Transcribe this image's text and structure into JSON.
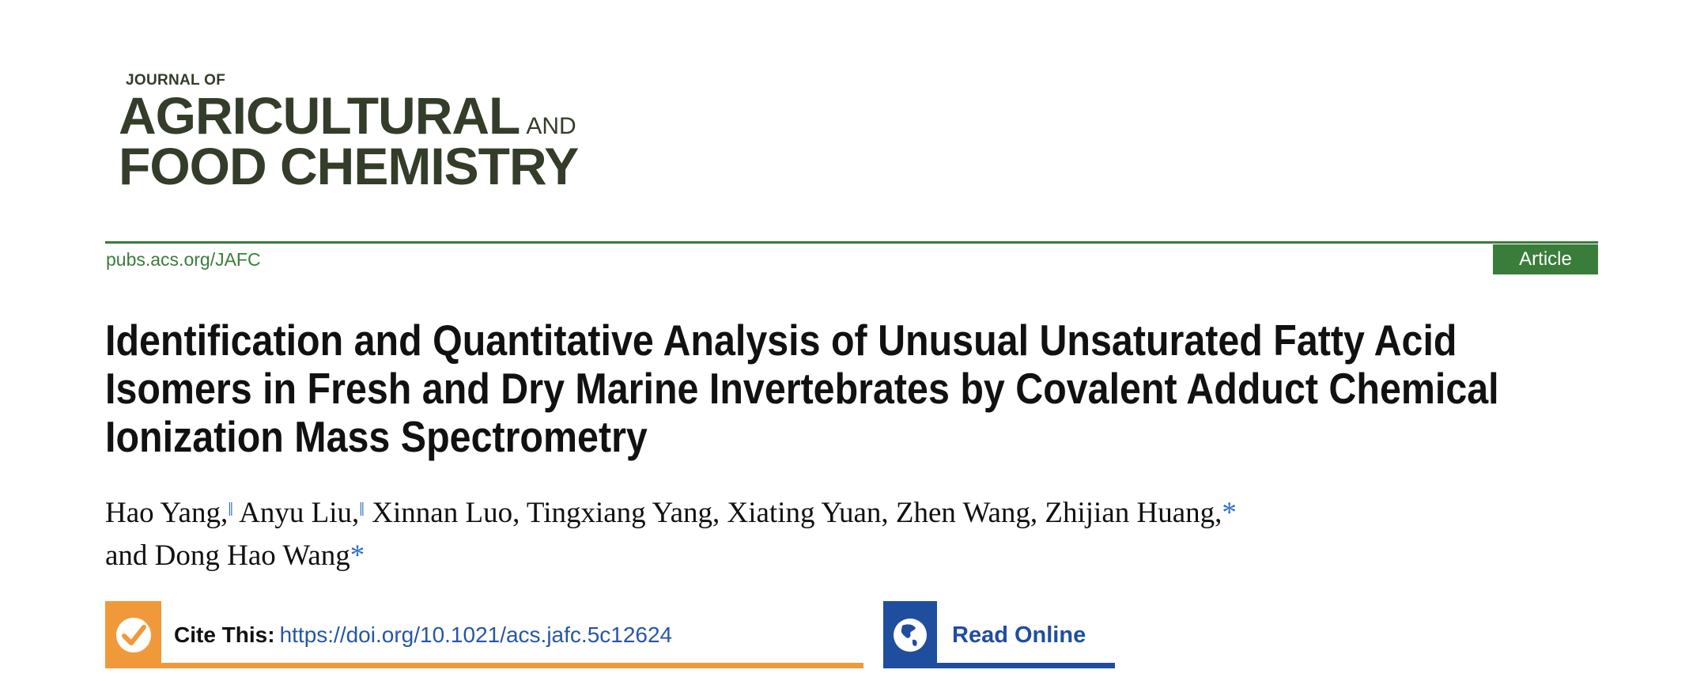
{
  "journal": {
    "logo_line0": "JOURNAL OF",
    "logo_line1": "AGRICULTURAL",
    "logo_and": "AND",
    "logo_line2": "FOOD CHEMISTRY",
    "url": "pubs.acs.org/JAFC",
    "article_type": "Article"
  },
  "article": {
    "title": "Identification and Quantitative Analysis of Unusual Unsaturated Fatty Acid Isomers in Fresh and Dry Marine Invertebrates by Covalent Adduct Chemical Ionization Mass Spectrometry",
    "authors": [
      {
        "name": "Hao Yang,",
        "mark": "‖"
      },
      {
        "name": "Anyu Liu,",
        "mark": "‖"
      },
      {
        "name": "Xinnan Luo, Tingxiang Yang, Xiating Yuan, Zhen Wang, Zhijian Huang,",
        "mark": "*"
      },
      {
        "name": "and Dong Hao Wang",
        "mark": "*"
      }
    ]
  },
  "cite": {
    "label": "Cite This:",
    "doi": "https://doi.org/10.1021/acs.jafc.5c12624",
    "icon": "checkmark-icon",
    "color": "#f0993b"
  },
  "read_online": {
    "label": "Read Online",
    "icon": "globe-icon",
    "color": "#1f4e9f"
  },
  "colors": {
    "logo": "#333d29",
    "accent": "#3a7d3a"
  }
}
